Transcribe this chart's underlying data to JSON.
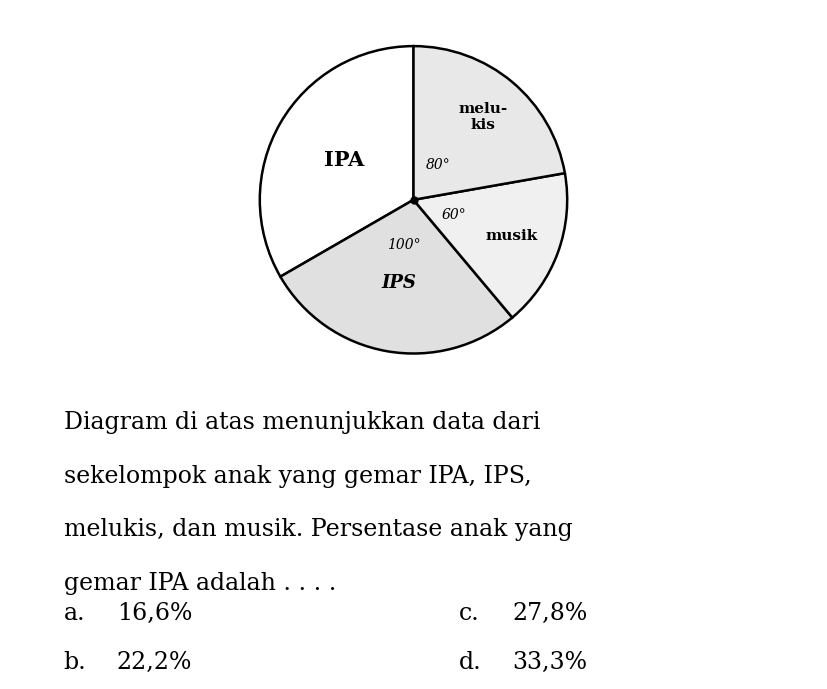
{
  "slices": [
    {
      "label": "IPA",
      "degrees": 120,
      "color": "#ffffff"
    },
    {
      "label": "melukis",
      "degrees": 80,
      "color": "#e8e8e8"
    },
    {
      "label": "musik",
      "degrees": 60,
      "color": "#f0f0f0"
    },
    {
      "label": "IPS",
      "degrees": 100,
      "color": "#e0e0e0"
    }
  ],
  "background_color": "#ffffff",
  "text_block_lines": [
    "Diagram di atas menunjukkan data dari",
    "sekelompok anak yang gemar IPA, IPS,",
    "melukis, dan musik. Persentase anak yang",
    "gemar IPA adalah . . . ."
  ],
  "choices": [
    {
      "key": "a.",
      "value": "16,6%",
      "col": 0
    },
    {
      "key": "b.",
      "value": "22,2%",
      "col": 0
    },
    {
      "key": "c.",
      "value": "27,8%",
      "col": 1
    },
    {
      "key": "d.",
      "value": "33,3%",
      "col": 1
    }
  ],
  "text_fontsize": 17,
  "choice_fontsize": 17
}
